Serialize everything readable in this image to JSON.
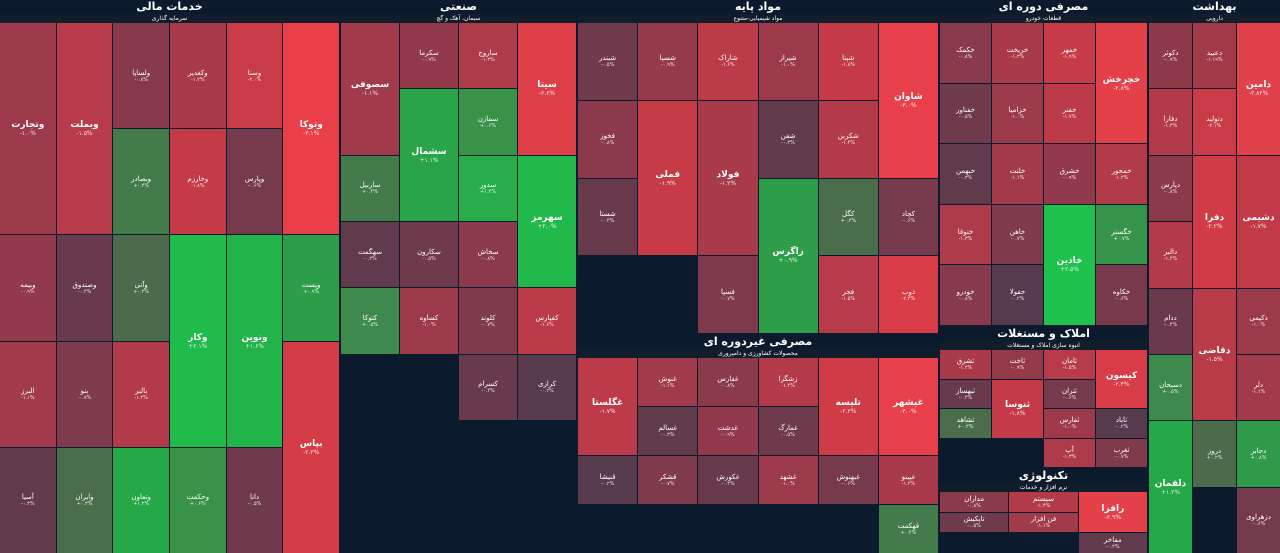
{
  "sectors": [
    {
      "id": "s1",
      "title": "بهداشت",
      "groups": [
        "دارویی"
      ],
      "tiles": [
        {
          "name": "دامین",
          "pct": "-۲.۸۲%",
          "color": "#e0414b",
          "big": true
        },
        {
          "name": "دعبید",
          "pct": "-۱.۱۹%",
          "color": "#a33a4a"
        },
        {
          "name": "دکوثر",
          "pct": "-۰.۹%",
          "color": "#8c3a4a"
        },
        {
          "name": "دتولید",
          "pct": "-۲.۱%",
          "color": "#c83b47"
        },
        {
          "name": "دفارا",
          "pct": "-۱.۳%",
          "color": "#b33b49"
        },
        {
          "name": "دشیمی",
          "pct": "-۱.۷%",
          "color": "#c23a47",
          "big": true
        },
        {
          "name": "دفرا",
          "pct": "-۲.۲%",
          "color": "#cf3b47",
          "big": true
        },
        {
          "name": "دپارس",
          "pct": "-۰.۸%",
          "color": "#8a3a4b"
        },
        {
          "name": "دالبر",
          "pct": "-۱.۴%",
          "color": "#b23b49"
        },
        {
          "name": "دکیمی",
          "pct": "-۱.۰%",
          "color": "#9c3a4b"
        },
        {
          "name": "دقاضی",
          "pct": "-۱.۵%",
          "color": "#b93b48",
          "big": true
        },
        {
          "name": "ددام",
          "pct": "-۰.۴%",
          "color": "#6a3a4c"
        },
        {
          "name": "دلر",
          "pct": "-۱.۱%",
          "color": "#a13a4a"
        },
        {
          "name": "دسبحان",
          "pct": "+۰.۵%",
          "color": "#3d8a4c"
        },
        {
          "name": "دجابر",
          "pct": "+۰.۸%",
          "color": "#2f9a49"
        },
        {
          "name": "دروز",
          "pct": "+۰.۲%",
          "color": "#4b6b4c"
        },
        {
          "name": "دلقمان",
          "pct": "+۱.۲%",
          "color": "#25a848",
          "big": true
        },
        {
          "name": "دزهراوی",
          "pct": "-۰.۶%",
          "color": "#733a4b"
        }
      ]
    },
    {
      "id": "s2",
      "title": "مصرفی دوره ای",
      "groups": [
        "قطعات خودرو"
      ],
      "tiles": [
        {
          "name": "خچرخش",
          "pct": "-۲.۸%",
          "color": "#e3404a",
          "big": true
        },
        {
          "name": "خمهر",
          "pct": "-۱.۹%",
          "color": "#c63b47"
        },
        {
          "name": "خریخت",
          "pct": "-۱.۲%",
          "color": "#a83a49"
        },
        {
          "name": "خکمک",
          "pct": "-۰.۸%",
          "color": "#893a4b"
        },
        {
          "name": "خفنر",
          "pct": "-۱.۷%",
          "color": "#bd3b48"
        },
        {
          "name": "خزامیا",
          "pct": "-۱.۰%",
          "color": "#9a3a4b"
        },
        {
          "name": "خفناور",
          "pct": "-۰.۵%",
          "color": "#6e3a4c"
        },
        {
          "name": "خمحور",
          "pct": "-۱.۴%",
          "color": "#b13b49"
        },
        {
          "name": "خشرق",
          "pct": "-۰.۹%",
          "color": "#923a4b"
        },
        {
          "name": "خلنت",
          "pct": "-۱.۱%",
          "color": "#a13a4a"
        },
        {
          "name": "خبهمن",
          "pct": "-۰.۳%",
          "color": "#613a4c"
        },
        {
          "name": "خگستر",
          "pct": "+۰.۷%",
          "color": "#36944a"
        },
        {
          "name": "خاذین",
          "pct": "+۲.۵%",
          "color": "#1fc24d",
          "big": true
        },
        {
          "name": "خاهن",
          "pct": "-۰.۷%",
          "color": "#7f3a4b"
        },
        {
          "name": "ختوقا",
          "pct": "-۱.۳%",
          "color": "#ae3b49"
        },
        {
          "name": "خکاوه",
          "pct": "-۰.۶%",
          "color": "#783a4b"
        },
        {
          "name": "خفولا",
          "pct": "-۰.۲%",
          "color": "#573a4c"
        },
        {
          "name": "خودرو",
          "pct": "-۰.۸%",
          "color": "#873a4b"
        }
      ]
    },
    {
      "id": "s3",
      "title": "مواد پایه",
      "groups": [
        "مواد شیمیایی-متنوع"
      ],
      "tiles": [
        {
          "name": "شاوان",
          "pct": "-۳.۰%",
          "color": "#e8404a",
          "big": true
        },
        {
          "name": "شپنا",
          "pct": "-۱.۸%",
          "color": "#c43b47"
        },
        {
          "name": "شیراز",
          "pct": "-۱.۰%",
          "color": "#9c3a4b"
        },
        {
          "name": "شاراک",
          "pct": "-۱.۶%",
          "color": "#bb3b48"
        },
        {
          "name": "شسپا",
          "pct": "-۰.۹%",
          "color": "#943a4b"
        },
        {
          "name": "شبندر",
          "pct": "-۰.۵%",
          "color": "#6e3a4c"
        },
        {
          "name": "شکربن",
          "pct": "-۱.۴%",
          "color": "#b33b49"
        },
        {
          "name": "شفن",
          "pct": "-۰.۳%",
          "color": "#613a4c"
        },
        {
          "name": "فولاد",
          "pct": "-۱.۲%",
          "color": "#a93a49",
          "big": true
        },
        {
          "name": "فملی",
          "pct": "-۱.۹%",
          "color": "#c73b47",
          "big": true
        },
        {
          "name": "فخوز",
          "pct": "-۰.۸%",
          "color": "#8a3a4b"
        },
        {
          "name": "کچاد",
          "pct": "-۰.۶%",
          "color": "#753a4b"
        },
        {
          "name": "کگل",
          "pct": "+۰.۳%",
          "color": "#4a6e4c"
        },
        {
          "name": "زاگرس",
          "pct": "+۰.۹%",
          "color": "#2d9d49",
          "big": true
        },
        {
          "name": "شستا",
          "pct": "-۰.۴%",
          "color": "#683a4c"
        },
        {
          "name": "ذوب",
          "pct": "-۲.۴%",
          "color": "#d73c47"
        },
        {
          "name": "فجر",
          "pct": "-۱.۵%",
          "color": "#b73b48"
        },
        {
          "name": "فسپا",
          "pct": "-۰.۷%",
          "color": "#7f3a4b"
        }
      ]
    },
    {
      "id": "s4",
      "title": "صنعتی",
      "groups": [
        "سیمان، آهک و گچ"
      ],
      "tiles": [
        {
          "name": "سیتا",
          "pct": "-۲.۶%",
          "color": "#dd3f48",
          "big": true
        },
        {
          "name": "ساروج",
          "pct": "-۱.۳%",
          "color": "#ae3b49"
        },
        {
          "name": "سکرما",
          "pct": "-۰.۹%",
          "color": "#923a4b"
        },
        {
          "name": "سصوفی",
          "pct": "-۱.۱%",
          "color": "#a13a4a",
          "big": true
        },
        {
          "name": "سمازن",
          "pct": "+۰.۶%",
          "color": "#389349"
        },
        {
          "name": "سشمال",
          "pct": "+۱.۱%",
          "color": "#2aa448",
          "big": true
        },
        {
          "name": "سهرمز",
          "pct": "+۲.۰%",
          "color": "#21b94b",
          "big": true
        },
        {
          "name": "سدور",
          "pct": "+۱.۴%",
          "color": "#25ae49"
        },
        {
          "name": "ساربیل",
          "pct": "+۰.۴%",
          "color": "#437b4b"
        },
        {
          "name": "سخاش",
          "pct": "-۰.۸%",
          "color": "#8a3a4b"
        },
        {
          "name": "سکارون",
          "pct": "-۰.۵%",
          "color": "#6e3a4c"
        },
        {
          "name": "سهگمت",
          "pct": "-۰.۳%",
          "color": "#613a4c"
        },
        {
          "name": "کفپارس",
          "pct": "-۱.۶%",
          "color": "#bb3b48"
        },
        {
          "name": "کلوند",
          "pct": "-۰.۷%",
          "color": "#7f3a4b"
        },
        {
          "name": "کساوه",
          "pct": "-۱.۰%",
          "color": "#9c3a4b"
        },
        {
          "name": "کتوکا",
          "pct": "+۰.۵%",
          "color": "#3d8a4c"
        },
        {
          "name": "کرازی",
          "pct": "-۰.۲%",
          "color": "#573a4c"
        },
        {
          "name": "کسرام",
          "pct": "-۰.۴%",
          "color": "#683a4c"
        }
      ]
    },
    {
      "id": "s5",
      "title": "خدمات مالی",
      "groups": [
        "سرمایه گذاری"
      ],
      "tiles": [
        {
          "name": "وتوکا",
          "pct": "-۳.۱%",
          "color": "#ea3f49",
          "big": true
        },
        {
          "name": "وسنا",
          "pct": "-۲.۰%",
          "color": "#c93b47"
        },
        {
          "name": "وکغدیر",
          "pct": "-۱.۲%",
          "color": "#a83a49"
        },
        {
          "name": "ولساپا",
          "pct": "-۰.۸%",
          "color": "#873a4b"
        },
        {
          "name": "وبملت",
          "pct": "-۱.۵%",
          "color": "#b73b48",
          "big": true
        },
        {
          "name": "وتجارت",
          "pct": "-۱.۰%",
          "color": "#9c3a4b",
          "big": true
        },
        {
          "name": "وپارس",
          "pct": "-۰.۶%",
          "color": "#753a4b"
        },
        {
          "name": "وخارزم",
          "pct": "-۱.۸%",
          "color": "#c43b47"
        },
        {
          "name": "وبصادر",
          "pct": "+۰.۴%",
          "color": "#437b4b"
        },
        {
          "name": "وپست",
          "pct": "+۰.۹%",
          "color": "#2d9d49"
        },
        {
          "name": "ونوین",
          "pct": "+۱.۶%",
          "color": "#22b34a",
          "big": true
        },
        {
          "name": "وکار",
          "pct": "+۲.۱%",
          "color": "#20bc4b",
          "big": true
        },
        {
          "name": "وآتی",
          "pct": "+۰.۲%",
          "color": "#4b6b4c"
        },
        {
          "name": "وصندوق",
          "pct": "-۰.۴%",
          "color": "#683a4c"
        },
        {
          "name": "وبیمه",
          "pct": "-۰.۹%",
          "color": "#923a4b"
        },
        {
          "name": "بپاس",
          "pct": "-۲.۳%",
          "color": "#d43c47",
          "big": true
        },
        {
          "name": "بالبر",
          "pct": "-۱.۴%",
          "color": "#b33b49"
        },
        {
          "name": "بنو",
          "pct": "-۰.۷%",
          "color": "#7f3a4b"
        },
        {
          "name": "البرز",
          "pct": "-۱.۱%",
          "color": "#a13a4a"
        },
        {
          "name": "دانا",
          "pct": "-۰.۵%",
          "color": "#6e3a4c"
        },
        {
          "name": "وحکمت",
          "pct": "+۰.۶%",
          "color": "#389349"
        },
        {
          "name": "وتعاون",
          "pct": "+۱.۲%",
          "color": "#25a848"
        },
        {
          "name": "وایران",
          "pct": "+۰.۳%",
          "color": "#4a6e4c"
        },
        {
          "name": "آسیا",
          "pct": "-۰.۳%",
          "color": "#613a4c"
        }
      ]
    },
    {
      "id": "s6",
      "title": "مصرفی غیردوره ای",
      "groups": [
        "محصولات کشاورزی و دامپروری"
      ],
      "tiles": [
        {
          "name": "غبشهر",
          "pct": "-۳.۰%",
          "color": "#e8404a",
          "big": true
        },
        {
          "name": "تلیسه",
          "pct": "-۲.۲%",
          "color": "#cf3b47",
          "big": true
        },
        {
          "name": "زشگزا",
          "pct": "-۱.۴%",
          "color": "#b33b49"
        },
        {
          "name": "غفارس",
          "pct": "-۰.۸%",
          "color": "#8a3a4b"
        },
        {
          "name": "غنوش",
          "pct": "-۱.۱%",
          "color": "#a13a4a"
        },
        {
          "name": "غگلستا",
          "pct": "-۱.۷%",
          "color": "#bd3b48",
          "big": true
        },
        {
          "name": "غمارگ",
          "pct": "-۰.۵%",
          "color": "#6e3a4c"
        },
        {
          "name": "غدشت",
          "pct": "-۰.۹%",
          "color": "#923a4b"
        },
        {
          "name": "غسالم",
          "pct": "-۰.۳%",
          "color": "#613a4c"
        },
        {
          "name": "غپینو",
          "pct": "-۱.۲%",
          "color": "#a83a49"
        },
        {
          "name": "غبهنوش",
          "pct": "-۰.۶%",
          "color": "#753a4b"
        },
        {
          "name": "غشهد",
          "pct": "-۱.۰%",
          "color": "#9c3a4b"
        },
        {
          "name": "غکورش",
          "pct": "-۰.۴%",
          "color": "#683a4c"
        },
        {
          "name": "قشکر",
          "pct": "-۰.۷%",
          "color": "#7f3a4b"
        },
        {
          "name": "قنیشا",
          "pct": "-۰.۲%",
          "color": "#573a4c"
        },
        {
          "name": "قهکمت",
          "pct": "+۰.۴%",
          "color": "#437b4b"
        }
      ]
    },
    {
      "id": "s7",
      "title": "املاک و مستغلات",
      "groups": [
        "انبوه سازی املاک و مستغلات"
      ],
      "tiles": [
        {
          "name": "کیسون",
          "pct": "-۲.۴%",
          "color": "#d73c47",
          "big": true
        },
        {
          "name": "ثامان",
          "pct": "-۱.۵%",
          "color": "#b73b48"
        },
        {
          "name": "ثاخت",
          "pct": "-۰.۹%",
          "color": "#943a4b"
        },
        {
          "name": "ثشرق",
          "pct": "-۱.۲%",
          "color": "#a83a49"
        },
        {
          "name": "ثتران",
          "pct": "-۰.۶%",
          "color": "#753a4b"
        },
        {
          "name": "ثنوسا",
          "pct": "-۱.۸%",
          "color": "#c43b47",
          "big": true
        },
        {
          "name": "ثبهساز",
          "pct": "-۰.۴%",
          "color": "#683a4c"
        },
        {
          "name": "ثاباد",
          "pct": "-۰.۲%",
          "color": "#573a4c"
        },
        {
          "name": "ثفارس",
          "pct": "-۱.۰%",
          "color": "#9c3a4b"
        },
        {
          "name": "ثشاهد",
          "pct": "+۰.۳%",
          "color": "#4a6e4c"
        },
        {
          "name": "ثغرب",
          "pct": "-۰.۷%",
          "color": "#7f3a4b"
        },
        {
          "name": "آپ",
          "pct": "-۱.۳%",
          "color": "#ae3b49"
        }
      ]
    },
    {
      "id": "s8",
      "title": "تکنولوژی",
      "groups": [
        "نرم افزار و خدمات"
      ],
      "tiles": [
        {
          "name": "رافزا",
          "pct": "-۲.۹%",
          "color": "#e4404a",
          "big": true
        },
        {
          "name": "سیستم",
          "pct": "-۱.۴%",
          "color": "#b33b49"
        },
        {
          "name": "مداران",
          "pct": "-۰.۸%",
          "color": "#8a3a4b"
        },
        {
          "name": "فن افزار",
          "pct": "-۱.۱%",
          "color": "#a13a4a"
        },
        {
          "name": "تاپکیش",
          "pct": "-۰.۵%",
          "color": "#6e3a4c"
        },
        {
          "name": "مفاخر",
          "pct": "-۰.۳%",
          "color": "#613a4c"
        }
      ]
    }
  ]
}
